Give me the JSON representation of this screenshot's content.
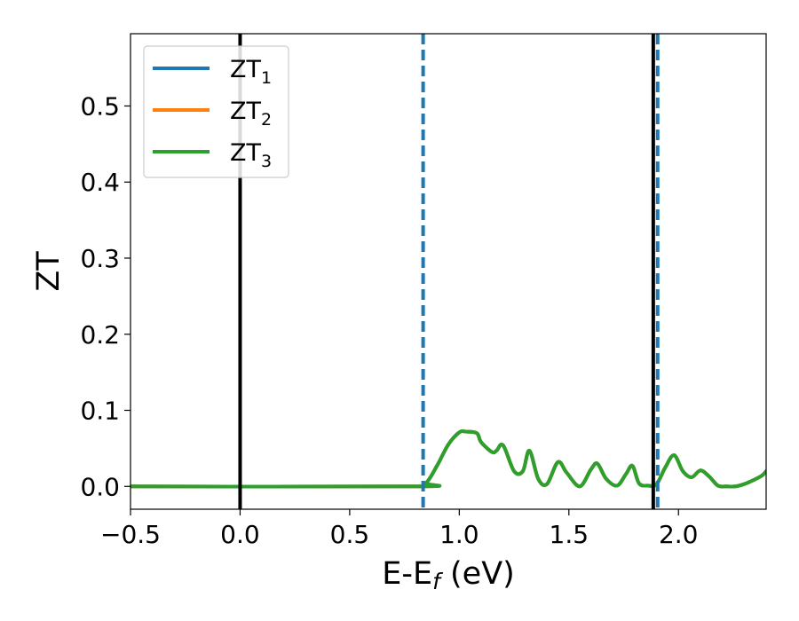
{
  "chart_data": {
    "type": "line",
    "xlabel": "E-E",
    "xlabel_sub": "f",
    "xlabel_unit": " (eV)",
    "ylabel": "ZT",
    "xlim": [
      -0.5,
      2.4
    ],
    "ylim": [
      -0.03,
      0.595
    ],
    "xticks": [
      -0.5,
      0.0,
      0.5,
      1.0,
      1.5,
      2.0
    ],
    "xtick_labels": [
      "−0.5",
      "0.0",
      "0.5",
      "1.0",
      "1.5",
      "2.0"
    ],
    "yticks": [
      0.0,
      0.1,
      0.2,
      0.3,
      0.4,
      0.5
    ],
    "ytick_labels": [
      "0.0",
      "0.1",
      "0.2",
      "0.3",
      "0.4",
      "0.5"
    ],
    "grid": false,
    "legend_position": "top-left",
    "series": [
      {
        "name": "ZT",
        "name_sub": "1",
        "color": "#1f77b4",
        "x": [
          -0.5,
          0.8,
          0.85,
          0.9,
          0.95,
          1.0,
          1.03,
          1.08,
          1.1,
          1.15,
          1.17,
          1.2,
          1.25,
          1.29,
          1.32,
          1.36,
          1.4,
          1.45,
          1.49,
          1.55,
          1.6,
          1.63,
          1.67,
          1.72,
          1.76,
          1.79,
          1.82,
          1.86,
          1.9,
          1.94,
          1.98,
          2.02,
          2.06,
          2.1,
          2.14,
          2.18,
          2.22,
          2.26,
          2.3,
          2.34,
          2.38,
          2.4
        ],
        "y": [
          0.0,
          0.0,
          0.005,
          0.028,
          0.055,
          0.071,
          0.072,
          0.07,
          0.058,
          0.045,
          0.047,
          0.054,
          0.02,
          0.02,
          0.047,
          0.01,
          0.003,
          0.032,
          0.018,
          0.0,
          0.022,
          0.03,
          0.01,
          0.001,
          0.016,
          0.027,
          0.004,
          0.001,
          0.003,
          0.025,
          0.041,
          0.02,
          0.012,
          0.021,
          0.013,
          0.001,
          0.0,
          0.0,
          0.003,
          0.008,
          0.014,
          0.02
        ]
      },
      {
        "name": "ZT",
        "name_sub": "2",
        "color": "#ff7f0e",
        "x": [
          -0.5,
          0.8,
          0.85,
          0.9,
          0.95,
          1.0,
          1.03,
          1.08,
          1.1,
          1.15,
          1.17,
          1.2,
          1.25,
          1.29,
          1.32,
          1.36,
          1.4,
          1.45,
          1.49,
          1.55,
          1.6,
          1.63,
          1.67,
          1.72,
          1.76,
          1.79,
          1.82,
          1.86,
          1.9,
          1.94,
          1.98,
          2.02,
          2.06,
          2.1,
          2.14,
          2.18,
          2.22,
          2.26,
          2.3,
          2.34,
          2.38,
          2.4
        ],
        "y": [
          0.0,
          0.0,
          0.005,
          0.028,
          0.055,
          0.071,
          0.072,
          0.07,
          0.058,
          0.045,
          0.047,
          0.054,
          0.02,
          0.02,
          0.047,
          0.01,
          0.003,
          0.032,
          0.018,
          0.0,
          0.022,
          0.03,
          0.01,
          0.001,
          0.016,
          0.027,
          0.004,
          0.001,
          0.003,
          0.025,
          0.041,
          0.02,
          0.012,
          0.021,
          0.013,
          0.001,
          0.0,
          0.0,
          0.003,
          0.008,
          0.014,
          0.02
        ]
      },
      {
        "name": "ZT",
        "name_sub": "3",
        "color": "#2ca02c",
        "x": [
          -0.5,
          0.8,
          0.85,
          0.9,
          0.95,
          1.0,
          1.03,
          1.08,
          1.1,
          1.15,
          1.17,
          1.2,
          1.25,
          1.29,
          1.32,
          1.36,
          1.4,
          1.45,
          1.49,
          1.55,
          1.6,
          1.63,
          1.67,
          1.72,
          1.76,
          1.79,
          1.82,
          1.86,
          1.9,
          1.94,
          1.98,
          2.02,
          2.06,
          2.1,
          2.14,
          2.18,
          2.22,
          2.26,
          2.3,
          2.34,
          2.38,
          2.4
        ],
        "y": [
          0.0,
          0.0,
          0.005,
          0.028,
          0.055,
          0.071,
          0.072,
          0.07,
          0.058,
          0.045,
          0.047,
          0.054,
          0.02,
          0.02,
          0.047,
          0.01,
          0.003,
          0.032,
          0.018,
          0.0,
          0.022,
          0.03,
          0.01,
          0.001,
          0.016,
          0.027,
          0.004,
          0.001,
          0.003,
          0.025,
          0.041,
          0.02,
          0.012,
          0.021,
          0.013,
          0.001,
          0.0,
          0.0,
          0.003,
          0.008,
          0.014,
          0.02
        ]
      }
    ],
    "vertical_lines": [
      {
        "x": 0.0,
        "style": "solid",
        "color": "#000000"
      },
      {
        "x": 1.885,
        "style": "solid",
        "color": "#000000"
      },
      {
        "x": 0.835,
        "style": "dashed",
        "color": "#1f77b4"
      },
      {
        "x": 1.905,
        "style": "dashed",
        "color": "#1f77b4"
      }
    ]
  }
}
